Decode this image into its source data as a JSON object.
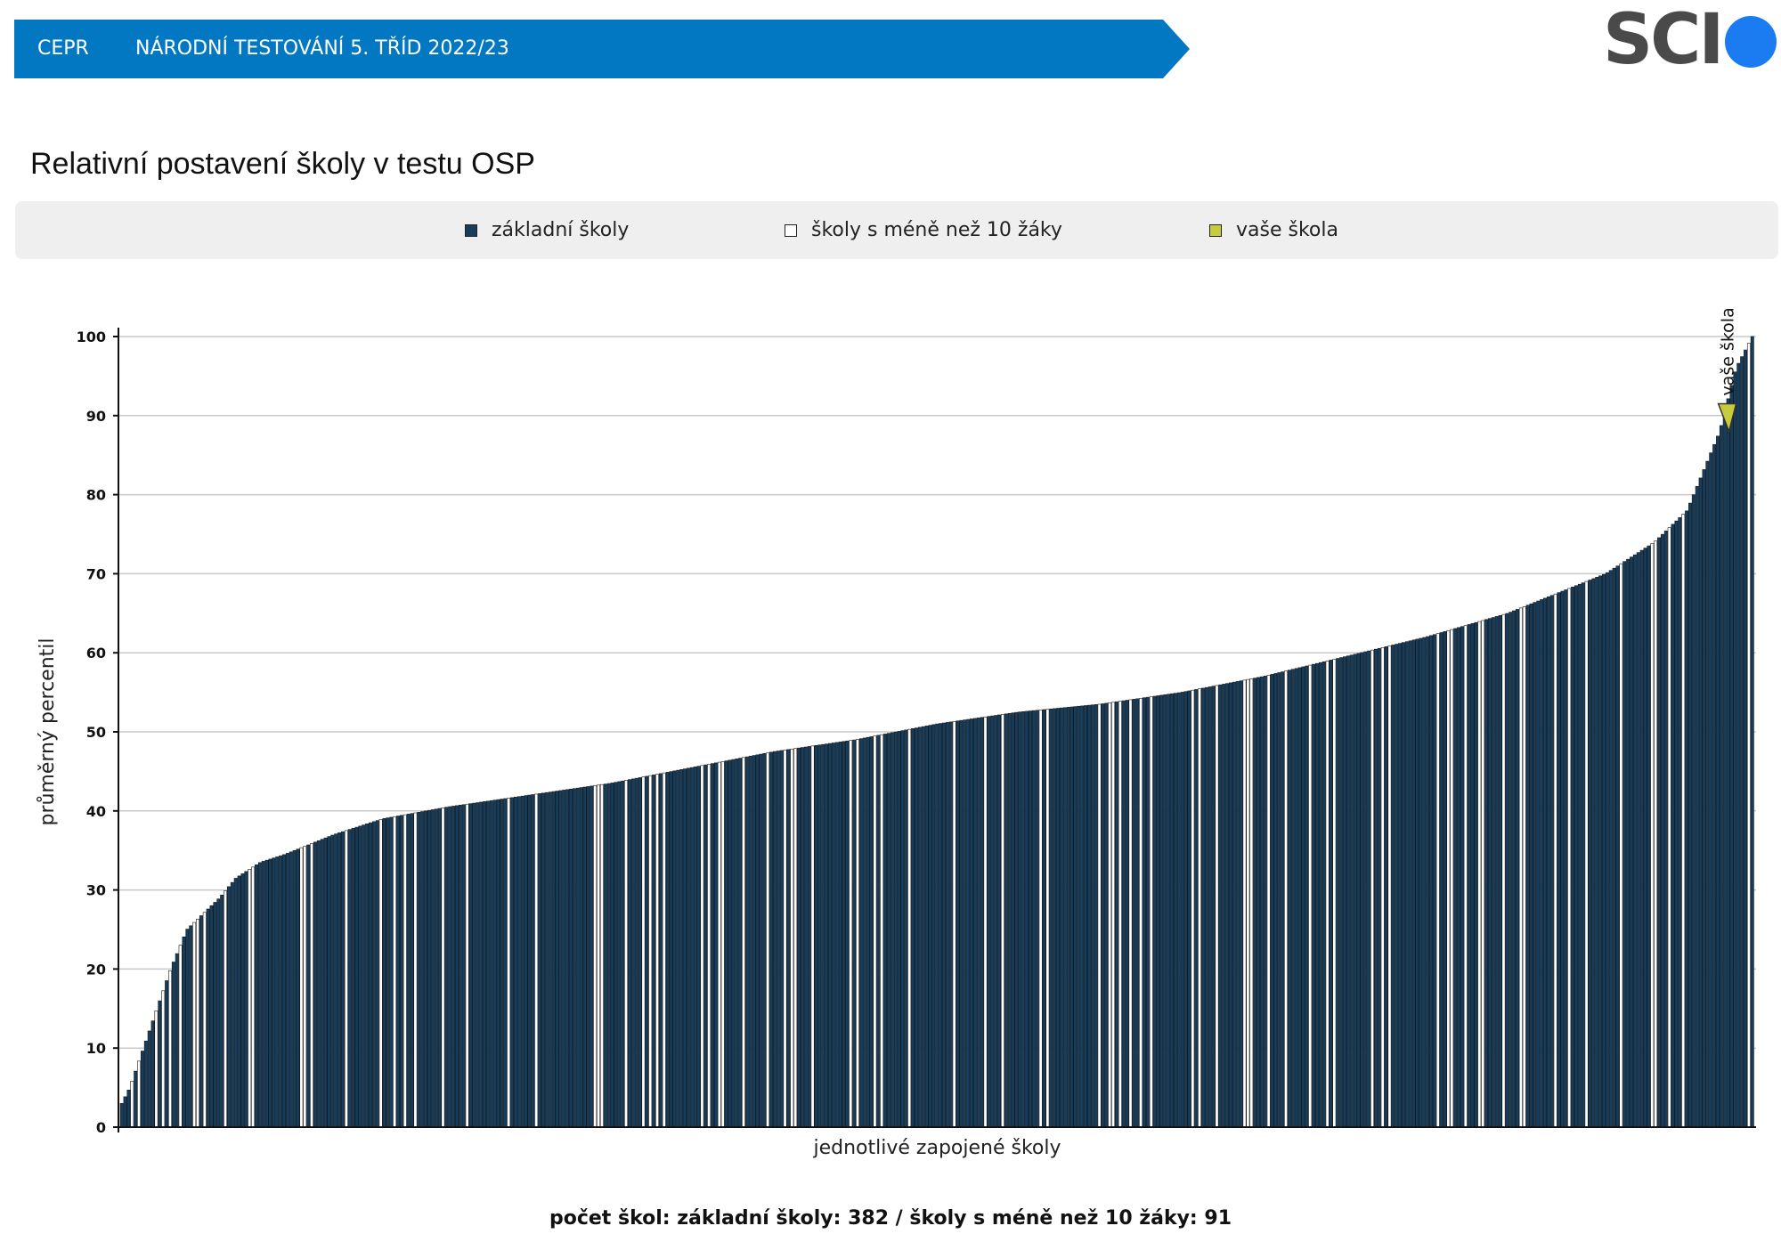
{
  "header": {
    "org": "CEPR",
    "title": "NÁRODNÍ TESTOVÁNÍ 5. TŘÍD 2022/23"
  },
  "logo": {
    "text": "SCI"
  },
  "page_title": "Relativní postavení školy v testu OSP",
  "legend": [
    {
      "label": "základní školy",
      "color": "#143d5e"
    },
    {
      "label": "školy s méně než 10 žáky",
      "color": "#ffffff"
    },
    {
      "label": "vaše škola",
      "color": "#c8cc3c"
    }
  ],
  "footer": {
    "count_text": "počet škol: základní školy: 382 / školy s méně než 10 žáky: 91"
  },
  "colors": {
    "header_bg": "#0277c2",
    "main_bar": "#143d5e",
    "small_bar": "#ffffff",
    "marker": "#c8cc3c",
    "logo_dot": "#1a7cf0"
  },
  "chart_data": {
    "type": "bar",
    "title": "",
    "xlabel": "jednotlivé zapojené školy",
    "ylabel": "průměrný percentil",
    "ylim": [
      0,
      100
    ],
    "yticks": [
      0,
      10,
      20,
      30,
      40,
      50,
      60,
      70,
      80,
      90,
      100
    ],
    "grid": true,
    "legend_placement": "top",
    "counts": {
      "zakladni_skoly": 382,
      "skoly_s_mene_nez_10_zaky": 91
    },
    "distribution_knots": [
      [
        0,
        3
      ],
      [
        0.005,
        5
      ],
      [
        0.01,
        8
      ],
      [
        0.02,
        14
      ],
      [
        0.03,
        20
      ],
      [
        0.04,
        25
      ],
      [
        0.05,
        27
      ],
      [
        0.06,
        29
      ],
      [
        0.07,
        31.5
      ],
      [
        0.085,
        33.5
      ],
      [
        0.1,
        34.5
      ],
      [
        0.13,
        37
      ],
      [
        0.16,
        39
      ],
      [
        0.2,
        40.5
      ],
      [
        0.25,
        42
      ],
      [
        0.3,
        43.5
      ],
      [
        0.35,
        45.5
      ],
      [
        0.4,
        47.5
      ],
      [
        0.45,
        49
      ],
      [
        0.5,
        51
      ],
      [
        0.55,
        52.5
      ],
      [
        0.6,
        53.5
      ],
      [
        0.65,
        55
      ],
      [
        0.7,
        57
      ],
      [
        0.75,
        59.5
      ],
      [
        0.8,
        62
      ],
      [
        0.85,
        65
      ],
      [
        0.88,
        67.5
      ],
      [
        0.91,
        70
      ],
      [
        0.94,
        74
      ],
      [
        0.96,
        78
      ],
      [
        0.97,
        83
      ],
      [
        0.98,
        88
      ],
      [
        0.99,
        96
      ],
      [
        1.0,
        100
      ]
    ],
    "your_school": {
      "label": "vaše škola",
      "value": 88,
      "rank_fraction": 0.985
    }
  }
}
